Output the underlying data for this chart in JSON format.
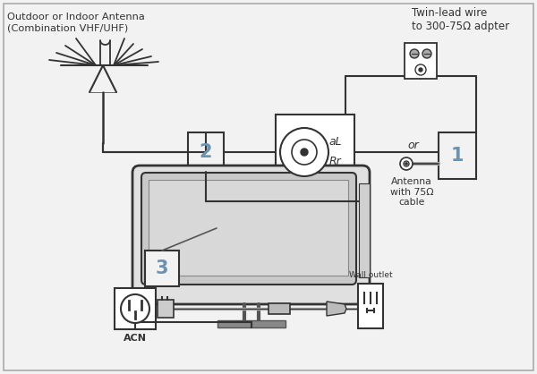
{
  "bg_color": "#f2f2f2",
  "border_color": "#999999",
  "line_color": "#333333",
  "light_gray": "#aaaaaa",
  "box_color": "#6b93b0",
  "antenna_label_line1": "Outdoor or Indoor Antenna",
  "antenna_label_line2": "(Combination VHF/UHF)",
  "twin_lead_label": "Twin-lead wire\nto 300-75Ω adpter",
  "or_text": "or",
  "label1": "1",
  "label2": "2",
  "label3": "3",
  "acn_label": "ACN",
  "wall_outlet_label": "Wall outlet",
  "antenna_75_label": "Antenna\nwith 75Ω\ncable"
}
